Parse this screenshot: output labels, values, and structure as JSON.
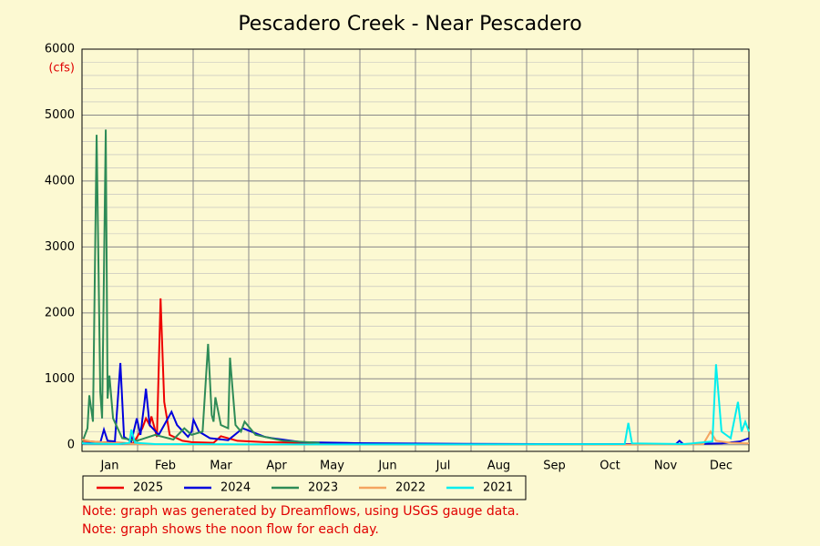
{
  "chart_data": {
    "type": "line",
    "title": "Pescadero Creek - Near Pescadero",
    "y_unit": "(cfs)",
    "categories": [
      "Jan",
      "Feb",
      "Mar",
      "Apr",
      "May",
      "Jun",
      "Jul",
      "Aug",
      "Sep",
      "Oct",
      "Nov",
      "Dec"
    ],
    "xlim": [
      0,
      365
    ],
    "ylim": [
      -100,
      6000
    ],
    "yticks": [
      0,
      1000,
      2000,
      3000,
      4000,
      5000,
      6000
    ],
    "grid": true,
    "series": [
      {
        "name": "2025",
        "color": "#ee0000",
        "x": [
          0,
          10,
          20,
          28,
          33,
          35,
          37,
          38,
          41,
          43,
          45,
          48,
          55,
          60,
          72,
          76,
          85,
          100,
          130,
          160,
          196
        ],
        "values": [
          60,
          40,
          30,
          20,
          250,
          400,
          300,
          430,
          120,
          2220,
          650,
          150,
          60,
          40,
          30,
          130,
          60,
          40,
          25,
          15,
          10
        ]
      },
      {
        "name": "2024",
        "color": "#0000dd",
        "x": [
          0,
          10,
          12,
          14,
          18,
          21,
          23,
          27,
          30,
          32,
          34,
          35,
          37,
          42,
          49,
          52,
          58,
          60,
          61,
          64,
          70,
          80,
          88,
          100,
          104,
          120,
          150,
          200,
          250,
          300,
          325,
          327,
          329,
          350,
          360,
          365
        ],
        "values": [
          20,
          30,
          230,
          60,
          50,
          1240,
          120,
          50,
          400,
          150,
          600,
          850,
          300,
          150,
          500,
          300,
          120,
          200,
          380,
          200,
          100,
          70,
          250,
          120,
          100,
          40,
          25,
          15,
          10,
          10,
          10,
          60,
          10,
          20,
          50,
          100
        ]
      },
      {
        "name": "2023",
        "color": "#2e8b57",
        "x": [
          0,
          3,
          4,
          6,
          8,
          10,
          11,
          13,
          14,
          15,
          17,
          22,
          30,
          40,
          50,
          56,
          60,
          66,
          69,
          71,
          72,
          73,
          76,
          80,
          81,
          84,
          87,
          89,
          95,
          110,
          130
        ],
        "values": [
          30,
          250,
          750,
          350,
          4700,
          800,
          400,
          4780,
          700,
          1050,
          400,
          100,
          60,
          150,
          80,
          250,
          150,
          200,
          1530,
          450,
          350,
          720,
          300,
          250,
          1320,
          300,
          200,
          350,
          150,
          60,
          30
        ]
      },
      {
        "name": "2022",
        "color": "#f4a460",
        "x": [
          0,
          5,
          15,
          30,
          60,
          120,
          200,
          300,
          340,
          344,
          347,
          355,
          365
        ],
        "values": [
          80,
          50,
          30,
          10,
          5,
          3,
          2,
          2,
          10,
          200,
          60,
          30,
          20
        ]
      },
      {
        "name": "2021",
        "color": "#00eeee",
        "x": [
          0,
          20,
          26,
          27,
          29,
          40,
          100,
          200,
          297,
          299,
          301,
          330,
          345,
          347,
          350,
          355,
          359,
          361,
          363,
          365
        ],
        "values": [
          20,
          10,
          30,
          230,
          30,
          10,
          5,
          5,
          10,
          330,
          20,
          10,
          50,
          1220,
          200,
          100,
          650,
          200,
          350,
          200
        ]
      }
    ],
    "notes": [
      "Note: graph was generated by Dreamflows, using USGS gauge data.",
      "Note: graph shows the noon flow for each day."
    ]
  }
}
